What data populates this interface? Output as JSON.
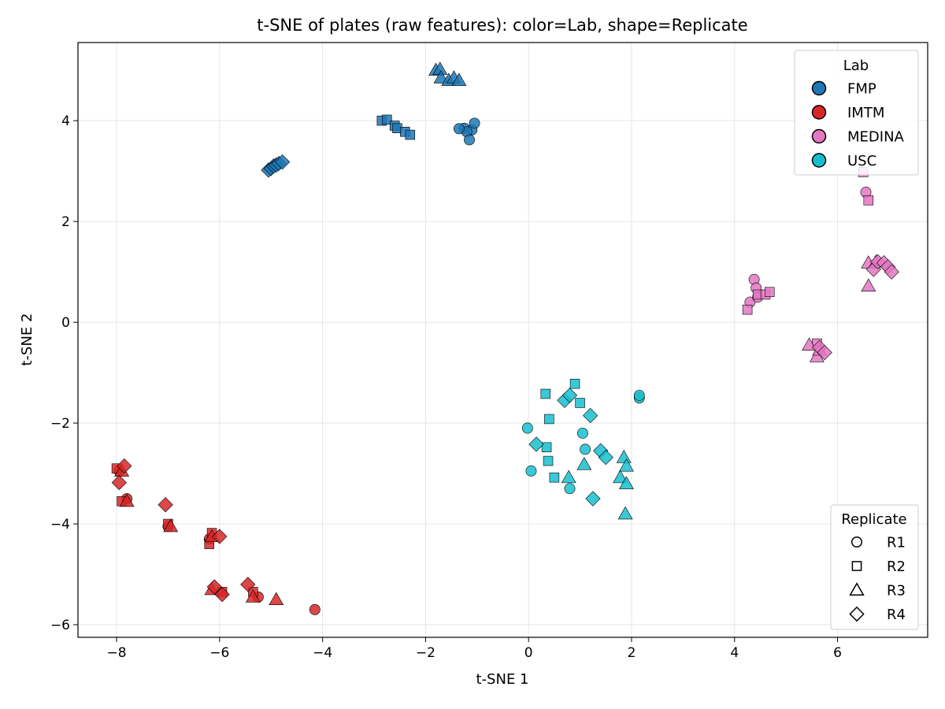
{
  "chart_data": {
    "type": "scatter",
    "title": "t-SNE of plates (raw features): color=Lab, shape=Replicate",
    "xlabel": "t-SNE 1",
    "ylabel": "t-SNE 2",
    "xlim": [
      -8.75,
      7.75
    ],
    "ylim": [
      -6.25,
      5.55
    ],
    "xticks": [
      -8,
      -6,
      -4,
      -2,
      0,
      2,
      4,
      6
    ],
    "yticks": [
      -6,
      -4,
      -2,
      0,
      2,
      4
    ],
    "xtick_labels": [
      "−8",
      "−6",
      "−4",
      "−2",
      "0",
      "2",
      "4",
      "6"
    ],
    "ytick_labels": [
      "−6",
      "−4",
      "−2",
      "0",
      "2",
      "4"
    ],
    "grid": true,
    "lab_legend": {
      "title": "Lab",
      "location": "top-right",
      "entries": [
        {
          "name": "FMP",
          "color": "#1f77b4"
        },
        {
          "name": "IMTM",
          "color": "#d62728"
        },
        {
          "name": "MEDINA",
          "color": "#e377c2"
        },
        {
          "name": "USC",
          "color": "#17becf"
        }
      ]
    },
    "replicate_legend": {
      "title": "Replicate",
      "location": "bottom-right",
      "entries": [
        {
          "name": "R1",
          "marker": "circle"
        },
        {
          "name": "R2",
          "marker": "square"
        },
        {
          "name": "R3",
          "marker": "triangle"
        },
        {
          "name": "R4",
          "marker": "diamond"
        }
      ]
    },
    "series": [
      {
        "lab": "FMP",
        "replicate": "R1",
        "marker": "circle",
        "color": "#1f77b4",
        "points": [
          [
            -1.25,
            3.85
          ],
          [
            -1.1,
            3.82
          ],
          [
            -1.2,
            3.78
          ],
          [
            -1.05,
            3.95
          ],
          [
            -1.15,
            3.62
          ],
          [
            -1.35,
            3.84
          ]
        ]
      },
      {
        "lab": "FMP",
        "replicate": "R2",
        "marker": "square",
        "color": "#1f77b4",
        "points": [
          [
            -2.85,
            4.0
          ],
          [
            -2.75,
            4.02
          ],
          [
            -2.6,
            3.9
          ],
          [
            -2.55,
            3.85
          ],
          [
            -2.4,
            3.78
          ],
          [
            -2.3,
            3.72
          ]
        ]
      },
      {
        "lab": "FMP",
        "replicate": "R3",
        "marker": "triangle",
        "color": "#1f77b4",
        "points": [
          [
            -1.8,
            5.0
          ],
          [
            -1.72,
            5.02
          ],
          [
            -1.7,
            4.85
          ],
          [
            -1.55,
            4.8
          ],
          [
            -1.45,
            4.85
          ],
          [
            -1.35,
            4.8
          ]
        ]
      },
      {
        "lab": "FMP",
        "replicate": "R4",
        "marker": "diamond",
        "color": "#1f77b4",
        "points": [
          [
            -5.05,
            3.02
          ],
          [
            -5.0,
            3.05
          ],
          [
            -4.95,
            3.1
          ],
          [
            -4.9,
            3.12
          ],
          [
            -4.85,
            3.15
          ],
          [
            -4.78,
            3.18
          ]
        ]
      },
      {
        "lab": "IMTM",
        "replicate": "R1",
        "marker": "circle",
        "color": "#d62728",
        "points": [
          [
            -7.8,
            -3.5
          ],
          [
            -7.0,
            -4.05
          ],
          [
            -6.2,
            -4.3
          ],
          [
            -5.25,
            -5.45
          ],
          [
            -4.15,
            -5.7
          ],
          [
            -7.95,
            -2.95
          ]
        ]
      },
      {
        "lab": "IMTM",
        "replicate": "R2",
        "marker": "square",
        "color": "#d62728",
        "points": [
          [
            -8.0,
            -2.9
          ],
          [
            -7.9,
            -3.55
          ],
          [
            -7.0,
            -4.0
          ],
          [
            -6.15,
            -4.18
          ],
          [
            -6.2,
            -4.4
          ],
          [
            -5.95,
            -5.35
          ],
          [
            -5.35,
            -5.35
          ]
        ]
      },
      {
        "lab": "IMTM",
        "replicate": "R3",
        "marker": "triangle",
        "color": "#d62728",
        "points": [
          [
            -7.9,
            -2.95
          ],
          [
            -7.8,
            -3.55
          ],
          [
            -6.95,
            -4.05
          ],
          [
            -6.15,
            -4.25
          ],
          [
            -6.15,
            -5.3
          ],
          [
            -5.35,
            -5.45
          ],
          [
            -4.9,
            -5.5
          ]
        ]
      },
      {
        "lab": "IMTM",
        "replicate": "R4",
        "marker": "diamond",
        "color": "#d62728",
        "points": [
          [
            -7.85,
            -2.85
          ],
          [
            -7.95,
            -3.18
          ],
          [
            -7.05,
            -3.62
          ],
          [
            -6.0,
            -4.25
          ],
          [
            -6.1,
            -5.25
          ],
          [
            -5.95,
            -5.4
          ],
          [
            -5.45,
            -5.2
          ]
        ]
      },
      {
        "lab": "MEDINA",
        "replicate": "R1",
        "marker": "circle",
        "color": "#e377c2",
        "points": [
          [
            4.38,
            0.85
          ],
          [
            4.42,
            0.68
          ],
          [
            4.3,
            0.4
          ],
          [
            4.45,
            0.5
          ],
          [
            6.55,
            2.58
          ]
        ]
      },
      {
        "lab": "MEDINA",
        "replicate": "R2",
        "marker": "square",
        "color": "#e377c2",
        "points": [
          [
            4.25,
            0.25
          ],
          [
            4.45,
            0.55
          ],
          [
            4.6,
            0.55
          ],
          [
            4.68,
            0.6
          ],
          [
            6.5,
            2.98
          ],
          [
            6.6,
            2.42
          ],
          [
            5.6,
            -0.42
          ]
        ]
      },
      {
        "lab": "MEDINA",
        "replicate": "R3",
        "marker": "triangle",
        "color": "#e377c2",
        "points": [
          [
            5.45,
            -0.45
          ],
          [
            5.6,
            -0.68
          ],
          [
            5.65,
            -0.55
          ],
          [
            6.6,
            0.72
          ],
          [
            6.6,
            1.18
          ],
          [
            6.75,
            1.2
          ]
        ]
      },
      {
        "lab": "MEDINA",
        "replicate": "R4",
        "marker": "diamond",
        "color": "#e377c2",
        "points": [
          [
            5.65,
            -0.5
          ],
          [
            5.75,
            -0.6
          ],
          [
            6.7,
            1.05
          ],
          [
            6.78,
            1.2
          ],
          [
            6.9,
            1.18
          ],
          [
            6.98,
            1.1
          ],
          [
            7.05,
            1.0
          ]
        ]
      },
      {
        "lab": "USC",
        "replicate": "R1",
        "marker": "circle",
        "color": "#17becf",
        "points": [
          [
            -0.02,
            -2.1
          ],
          [
            0.05,
            -2.95
          ],
          [
            0.8,
            -3.3
          ],
          [
            1.05,
            -2.2
          ],
          [
            1.1,
            -2.52
          ],
          [
            2.15,
            -1.5
          ],
          [
            2.15,
            -1.45
          ]
        ]
      },
      {
        "lab": "USC",
        "replicate": "R2",
        "marker": "square",
        "color": "#17becf",
        "points": [
          [
            0.33,
            -1.42
          ],
          [
            0.4,
            -1.92
          ],
          [
            0.35,
            -2.48
          ],
          [
            0.38,
            -2.75
          ],
          [
            0.5,
            -3.08
          ],
          [
            0.9,
            -1.22
          ],
          [
            1.0,
            -1.6
          ]
        ]
      },
      {
        "lab": "USC",
        "replicate": "R3",
        "marker": "triangle",
        "color": "#17becf",
        "points": [
          [
            0.78,
            -3.08
          ],
          [
            1.08,
            -2.82
          ],
          [
            1.78,
            -3.08
          ],
          [
            1.85,
            -2.68
          ],
          [
            1.9,
            -2.85
          ],
          [
            1.9,
            -3.2
          ],
          [
            1.88,
            -3.8
          ]
        ]
      },
      {
        "lab": "USC",
        "replicate": "R4",
        "marker": "diamond",
        "color": "#17becf",
        "points": [
          [
            0.7,
            -1.55
          ],
          [
            0.8,
            -1.45
          ],
          [
            1.2,
            -1.85
          ],
          [
            0.15,
            -2.42
          ],
          [
            1.4,
            -2.55
          ],
          [
            1.5,
            -2.68
          ],
          [
            1.25,
            -3.5
          ]
        ]
      }
    ]
  }
}
